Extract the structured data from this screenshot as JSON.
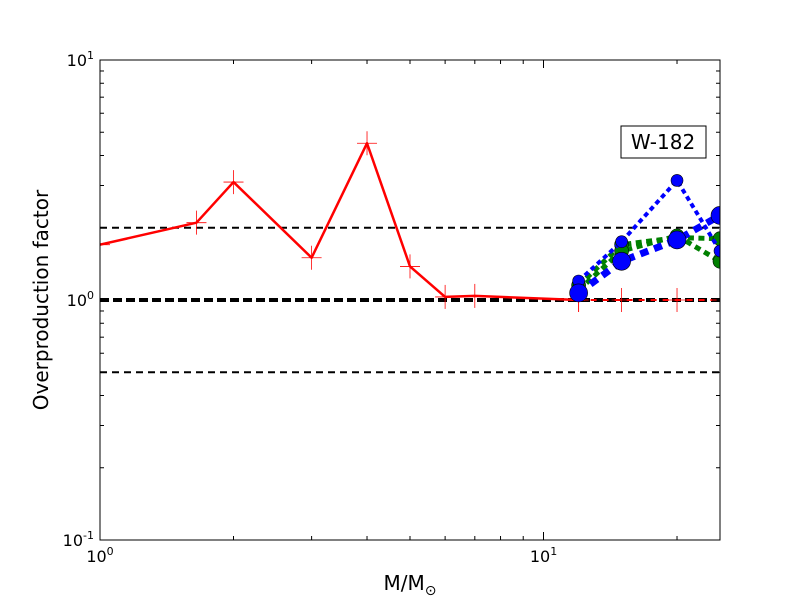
{
  "chart_data": {
    "type": "line",
    "xscale": "log",
    "yscale": "log",
    "xlim": [
      1,
      25
    ],
    "ylim": [
      0.1,
      10
    ],
    "xlabel": "M/M",
    "xlabel_sub": "⊙",
    "ylabel": "Overproduction factor",
    "x_ticks": [
      {
        "value": 1,
        "base": "10",
        "exp": "0"
      },
      {
        "value": 10,
        "base": "10",
        "exp": "1"
      }
    ],
    "y_ticks": [
      {
        "value": 0.1,
        "base": "10",
        "exp": "-1"
      },
      {
        "value": 1,
        "base": "10",
        "exp": "0"
      },
      {
        "value": 10,
        "base": "10",
        "exp": "1"
      }
    ],
    "annotation": "W-182",
    "reference_lines": [
      {
        "y": 2.0,
        "style": "dashed",
        "color": "#000000",
        "width": 2
      },
      {
        "y": 1.0,
        "style": "dashed",
        "color": "#000000",
        "width": 4
      },
      {
        "y": 0.5,
        "style": "dashed",
        "color": "#000000",
        "width": 2
      }
    ],
    "series": [
      {
        "color": "#ff0000",
        "style": "solid",
        "marker": "plus",
        "width": 2.5,
        "x": [
          1.0,
          1.65,
          2.0,
          3.0,
          4.0,
          5.0,
          6.0,
          7.0,
          12.0
        ],
        "y": [
          1.7,
          2.1,
          3.1,
          1.5,
          4.5,
          1.38,
          1.03,
          1.04,
          1.0
        ]
      },
      {
        "color": "#ff0000",
        "style": "dashed",
        "marker": "plus",
        "width": 2,
        "x": [
          12.0,
          15.0,
          20.0,
          25.0
        ],
        "y": [
          1.0,
          1.0,
          1.0,
          1.0
        ]
      },
      {
        "color": "#008000",
        "style": "dotted",
        "marker": "circle",
        "width": 5,
        "x": [
          12.0,
          15.0,
          20.0,
          25.0
        ],
        "y": [
          1.15,
          1.7,
          1.82,
          1.8
        ]
      },
      {
        "color": "#008000",
        "style": "dotted",
        "marker": "circle",
        "width": 5,
        "x": [
          12.0,
          15.0,
          20.0,
          25.0
        ],
        "y": [
          1.1,
          1.6,
          1.85,
          1.45
        ]
      },
      {
        "color": "#0000ff",
        "style": "dotted",
        "marker": "circle",
        "width": 4,
        "x": [
          12.0,
          15.0,
          20.0,
          25.0
        ],
        "y": [
          1.2,
          1.75,
          3.15,
          1.6
        ]
      },
      {
        "color": "#0000ff",
        "style": "dotted",
        "marker": "circle",
        "width": 7,
        "x": [
          12.0,
          15.0,
          20.0,
          25.0
        ],
        "y": [
          1.07,
          1.45,
          1.78,
          2.25
        ]
      }
    ]
  }
}
